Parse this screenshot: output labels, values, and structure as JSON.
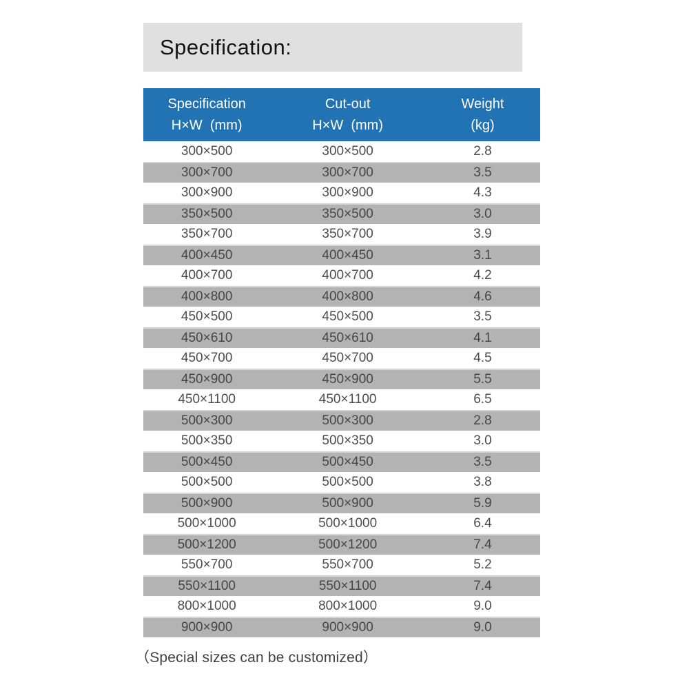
{
  "page": {
    "title": "Specification:",
    "footer_note": "（Special sizes can be customized）"
  },
  "colors": {
    "header_bg": "#2173b4",
    "header_text": "#ffffff",
    "alt_row_bg": "#b3b3b3",
    "title_box_bg": "#e0e0e0"
  },
  "table": {
    "columns": [
      {
        "line1": "Specification",
        "line2": "H×W  (mm)"
      },
      {
        "line1": "Cut-out",
        "line2": "H×W  (mm)"
      },
      {
        "line1": "Weight",
        "line2": "(kg)"
      }
    ],
    "rows": [
      {
        "spec": "300×500",
        "cutout": "300×500",
        "weight": "2.8"
      },
      {
        "spec": "300×700",
        "cutout": "300×700",
        "weight": "3.5"
      },
      {
        "spec": "300×900",
        "cutout": "300×900",
        "weight": "4.3"
      },
      {
        "spec": "350×500",
        "cutout": "350×500",
        "weight": "3.0"
      },
      {
        "spec": "350×700",
        "cutout": "350×700",
        "weight": "3.9"
      },
      {
        "spec": "400×450",
        "cutout": "400×450",
        "weight": "3.1"
      },
      {
        "spec": "400×700",
        "cutout": "400×700",
        "weight": "4.2"
      },
      {
        "spec": "400×800",
        "cutout": "400×800",
        "weight": "4.6"
      },
      {
        "spec": "450×500",
        "cutout": "450×500",
        "weight": "3.5"
      },
      {
        "spec": "450×610",
        "cutout": "450×610",
        "weight": "4.1"
      },
      {
        "spec": "450×700",
        "cutout": "450×700",
        "weight": "4.5"
      },
      {
        "spec": "450×900",
        "cutout": "450×900",
        "weight": "5.5"
      },
      {
        "spec": "450×1100",
        "cutout": "450×1100",
        "weight": "6.5"
      },
      {
        "spec": "500×300",
        "cutout": "500×300",
        "weight": "2.8"
      },
      {
        "spec": "500×350",
        "cutout": "500×350",
        "weight": "3.0"
      },
      {
        "spec": "500×450",
        "cutout": "500×450",
        "weight": "3.5"
      },
      {
        "spec": "500×500",
        "cutout": "500×500",
        "weight": "3.8"
      },
      {
        "spec": "500×900",
        "cutout": "500×900",
        "weight": "5.9"
      },
      {
        "spec": "500×1000",
        "cutout": "500×1000",
        "weight": "6.4"
      },
      {
        "spec": "500×1200",
        "cutout": "500×1200",
        "weight": "7.4"
      },
      {
        "spec": "550×700",
        "cutout": "550×700",
        "weight": "5.2"
      },
      {
        "spec": "550×1100",
        "cutout": "550×1100",
        "weight": "7.4"
      },
      {
        "spec": "800×1000",
        "cutout": "800×1000",
        "weight": "9.0"
      },
      {
        "spec": "900×900",
        "cutout": "900×900",
        "weight": "9.0"
      }
    ]
  }
}
